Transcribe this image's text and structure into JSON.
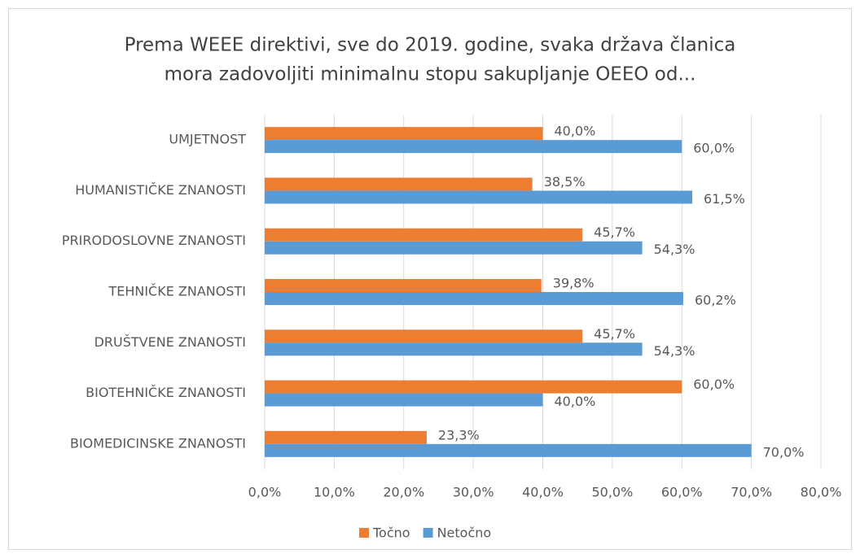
{
  "chart_data": {
    "type": "hbar",
    "title": [
      "Prema WEEE direktivi, sve do 2019. godine, svaka država članica",
      "mora zadovoljiti minimalnu stopu sakupljanje OEEO od..."
    ],
    "categories": [
      "UMJETNOST",
      "HUMANISTIČKE ZNANOSTI",
      "PRIRODOSLOVNE ZNANOSTI",
      "TEHNIČKE ZNANOSTI",
      "DRUŠTVENE ZNANOSTI",
      "BIOTEHNIČKE ZNANOSTI",
      "BIOMEDICINSKE ZNANOSTI"
    ],
    "series": [
      {
        "name": "Točno",
        "color": "#ed7d31",
        "values": [
          40.0,
          38.5,
          45.7,
          39.8,
          45.7,
          60.0,
          23.3
        ],
        "value_labels": [
          "40,0%",
          "38,5%",
          "45,7%",
          "39,8%",
          "45,7%",
          "60,0%",
          "23,3%"
        ]
      },
      {
        "name": "Netočno",
        "color": "#5b9bd5",
        "values": [
          60.0,
          61.5,
          54.3,
          60.2,
          54.3,
          40.0,
          70.0
        ],
        "value_labels": [
          "60,0%",
          "61,5%",
          "54,3%",
          "60,2%",
          "54,3%",
          "40,0%",
          "70,0%"
        ]
      }
    ],
    "xlim": [
      0,
      80
    ],
    "xticks": [
      {
        "value": 0,
        "label": "0,0%"
      },
      {
        "value": 10,
        "label": "10,0%"
      },
      {
        "value": 20,
        "label": "20,0%"
      },
      {
        "value": 30,
        "label": "30,0%"
      },
      {
        "value": 40,
        "label": "40,0%"
      },
      {
        "value": 50,
        "label": "50,0%"
      },
      {
        "value": 60,
        "label": "60,0%"
      },
      {
        "value": 70,
        "label": "70,0%"
      },
      {
        "value": 80,
        "label": "80,0%"
      }
    ],
    "grid": true,
    "legend": "bottom"
  }
}
